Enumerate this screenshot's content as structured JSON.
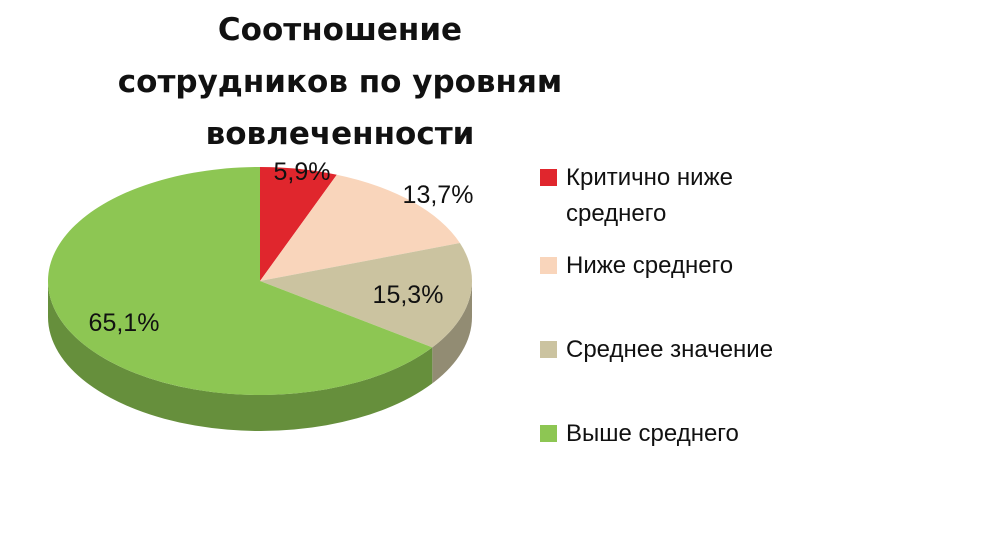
{
  "chart_data": {
    "type": "pie",
    "title": "Соотношение сотрудников по уровням вовлеченности",
    "style": "3d",
    "legend_position": "right",
    "slices": [
      {
        "name": "Критично ниже среднего",
        "value": 5.9,
        "label": "5,9%",
        "color": "#e0262d"
      },
      {
        "name": "Ниже среднего",
        "value": 13.7,
        "label": "13,7%",
        "color": "#f9d5bb"
      },
      {
        "name": "Среднее значение",
        "value": 15.3,
        "label": "15,3%",
        "color": "#cbc3a0"
      },
      {
        "name": "Выше среднего",
        "value": 65.1,
        "label": "65,1%",
        "color": "#8dc653"
      }
    ]
  }
}
